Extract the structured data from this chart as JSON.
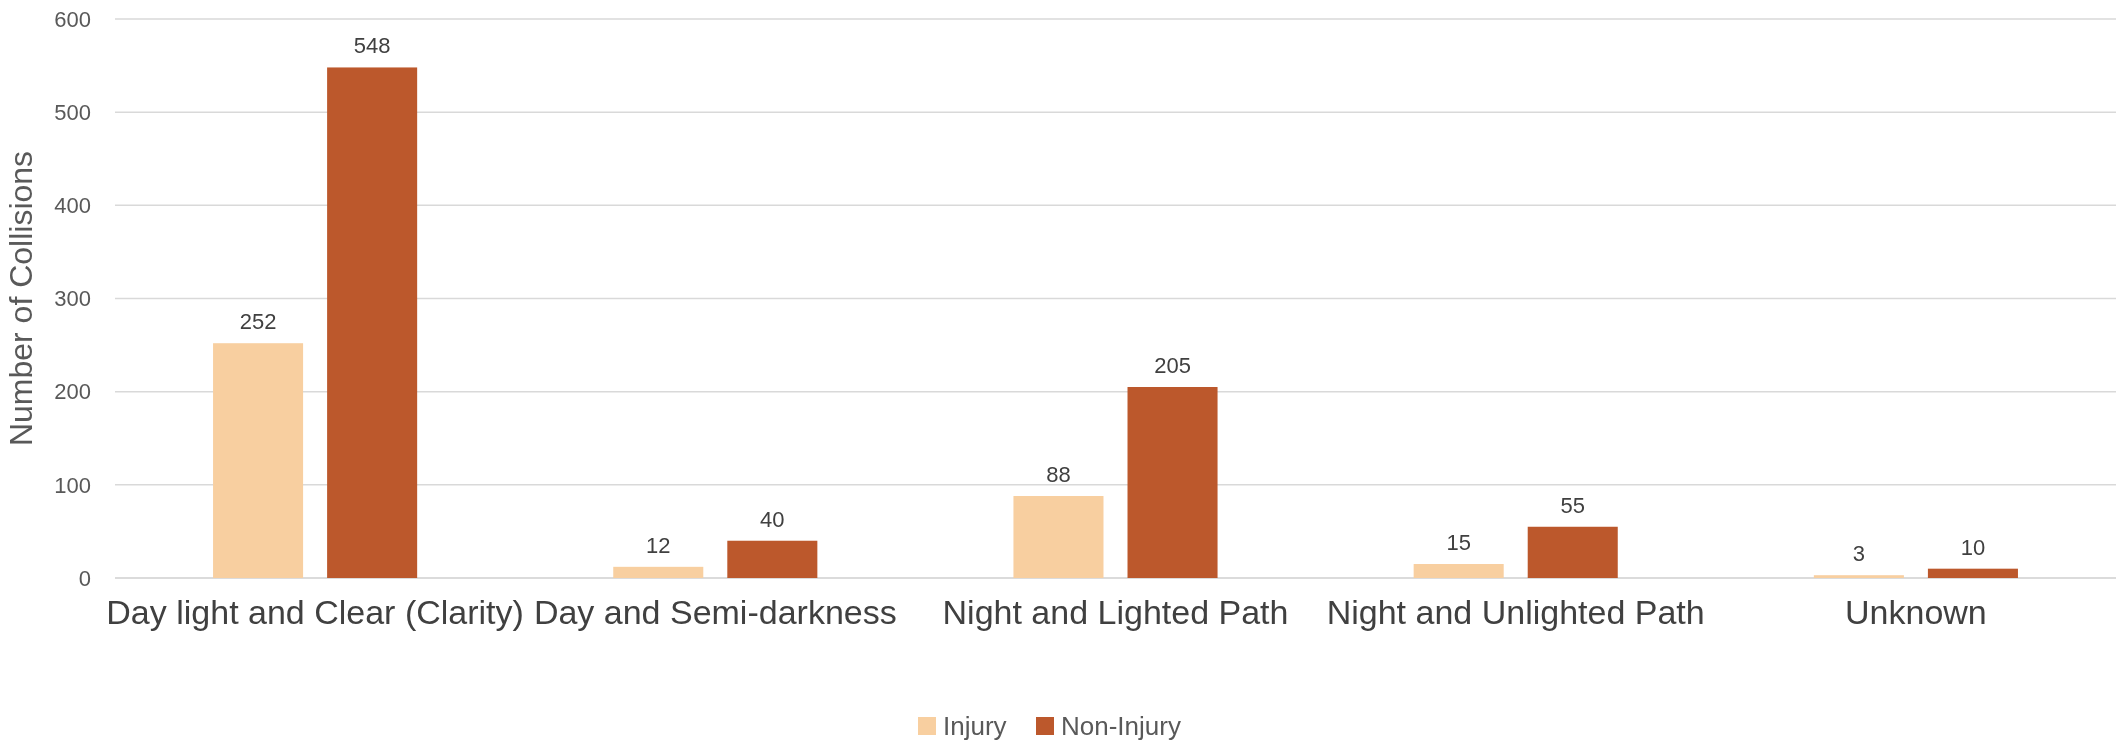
{
  "chart_data": {
    "type": "bar",
    "ylabel": "Number of Collisions",
    "categories": [
      "Day light and Clear (Clarity)",
      "Day and Semi-darkness",
      "Night and Lighted Path",
      "Night and Unlighted Path",
      "Unknown"
    ],
    "series": [
      {
        "name": "Injury",
        "color": "#f8cfa0",
        "values": [
          252,
          12,
          88,
          15,
          3
        ]
      },
      {
        "name": "Non-Injury",
        "color": "#bc582c",
        "values": [
          548,
          40,
          205,
          55,
          10
        ]
      }
    ],
    "ylim": [
      0,
      600
    ],
    "yticks": [
      0,
      100,
      200,
      300,
      400,
      500,
      600
    ],
    "grid": "y",
    "legend": "bottom",
    "data_labels": true
  }
}
